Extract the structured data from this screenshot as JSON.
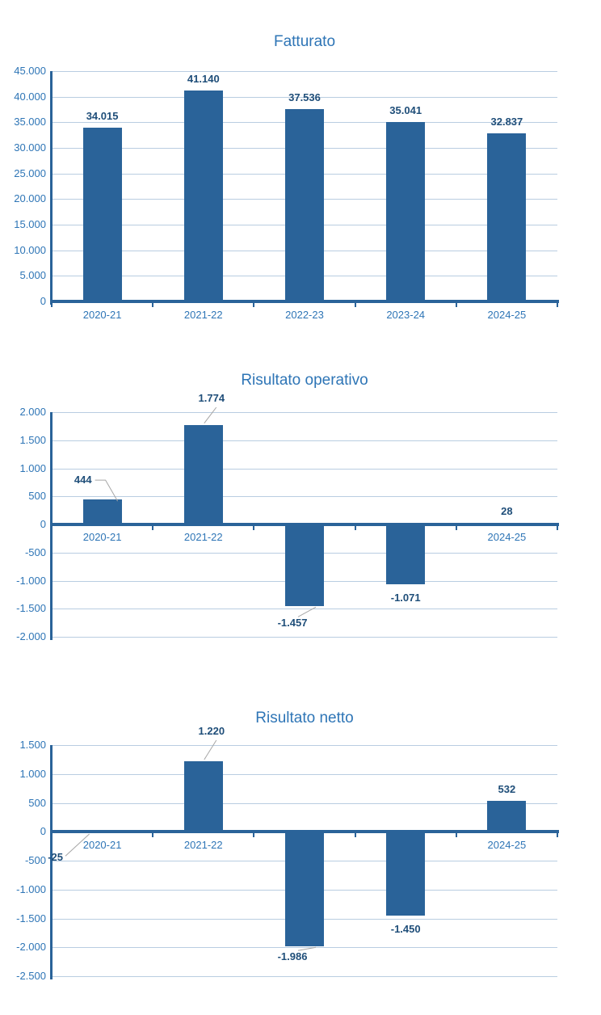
{
  "page_title": "",
  "colors": {
    "bar_fill": "#2A6399",
    "axis": "#2A6399",
    "gridline": "#B9CDE1",
    "title_text": "#2E75B6",
    "tick_text": "#2E75B6",
    "category_text": "#2E75B6",
    "data_label_text": "#1F4E79",
    "leader_line": "#A6A6A6",
    "background": "#FFFFFF"
  },
  "chart_data": [
    {
      "type": "bar",
      "title": "Fatturato",
      "categories": [
        "2020-21",
        "2021-22",
        "2022-23",
        "2023-24",
        "2024-25"
      ],
      "values": [
        34015,
        41140,
        37536,
        35041,
        32837
      ],
      "value_labels": [
        "34.015",
        "41.140",
        "37.536",
        "35.041",
        "32.837"
      ],
      "ylim": [
        0,
        45000
      ],
      "ytick_step": 5000,
      "ytick_labels": [
        "45.000",
        "40.000",
        "35.000",
        "30.000",
        "25.000",
        "20.000",
        "15.000",
        "10.000",
        "5.000",
        "0"
      ],
      "grid": true,
      "legend": "none",
      "label_positions": [
        "above",
        "above",
        "above",
        "above",
        "above"
      ]
    },
    {
      "type": "bar",
      "title": "Risultato operativo",
      "categories": [
        "2020-21",
        "2021-22",
        "2022-23",
        "2023-24",
        "2024-25"
      ],
      "values": [
        444,
        1774,
        -1457,
        -1071,
        28
      ],
      "value_labels": [
        "444",
        "1.774",
        "-1.457",
        "-1.071",
        "28"
      ],
      "ylim": [
        -2000,
        2000
      ],
      "ytick_step": 500,
      "ytick_labels": [
        "2.000",
        "1.500",
        "1.000",
        "500",
        "0",
        "-500",
        "-1.000",
        "-1.500",
        "-2.000"
      ],
      "grid": true,
      "legend": "none",
      "label_positions": [
        "left-callout",
        "above-callout",
        "below-callout",
        "below",
        "above"
      ]
    },
    {
      "type": "bar",
      "title": "Risultato netto",
      "categories": [
        "2020-21",
        "2021-22",
        "2022-23",
        "2023-24",
        "2024-25"
      ],
      "values": [
        -25,
        1220,
        -1986,
        -1450,
        532
      ],
      "value_labels": [
        "-25",
        "1.220",
        "-1.986",
        "-1.450",
        "532"
      ],
      "ylim": [
        -2500,
        1500
      ],
      "ytick_step": 500,
      "ytick_labels": [
        "1.500",
        "1.000",
        "500",
        "0",
        "-500",
        "-1.000",
        "-1.500",
        "-2.000",
        "-2.500"
      ],
      "grid": true,
      "legend": "none",
      "label_positions": [
        "left-below-callout",
        "above-callout",
        "below-callout",
        "below",
        "above"
      ]
    }
  ]
}
